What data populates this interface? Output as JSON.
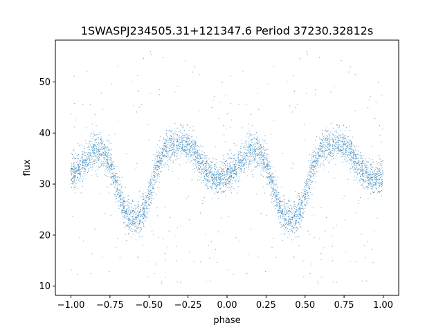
{
  "chart_data": {
    "type": "scatter",
    "title": "1SWASPJ234505.31+121347.6 Period 37230.32812s",
    "xlabel": "phase",
    "ylabel": "flux",
    "xlim": [
      -1.1,
      1.1
    ],
    "ylim": [
      8.2,
      58.2
    ],
    "x_ticks": [
      -1.0,
      -0.75,
      -0.5,
      -0.25,
      0.0,
      0.25,
      0.5,
      0.75,
      1.0
    ],
    "x_tick_labels": [
      "−1.00",
      "−0.75",
      "−0.50",
      "−0.25",
      "0.00",
      "0.25",
      "0.50",
      "0.75",
      "1.00"
    ],
    "y_ticks": [
      10,
      20,
      30,
      40,
      50
    ],
    "y_tick_labels": [
      "10",
      "20",
      "30",
      "40",
      "50"
    ],
    "grid": false,
    "legend": "none",
    "point_color": "#1f77b4",
    "series": [
      {
        "phase_flux_profile": {
          "phase": [
            0.0,
            0.05,
            0.1,
            0.15,
            0.2,
            0.25,
            0.3,
            0.35,
            0.4,
            0.45,
            0.5,
            0.55,
            0.6,
            0.65,
            0.7,
            0.75,
            0.8,
            0.85,
            0.9,
            0.95,
            1.0
          ],
          "flux": [
            31.5,
            33.0,
            35.0,
            36.5,
            36.2,
            34.0,
            29.0,
            24.0,
            23.0,
            23.5,
            27.5,
            33.5,
            36.5,
            37.8,
            38.0,
            37.5,
            36.0,
            33.0,
            31.5,
            31.0,
            31.5
          ]
        },
        "scatter_spread": 1.6,
        "outlier_fraction": 0.05,
        "outlier_flux_range": [
          10,
          56
        ]
      }
    ]
  }
}
